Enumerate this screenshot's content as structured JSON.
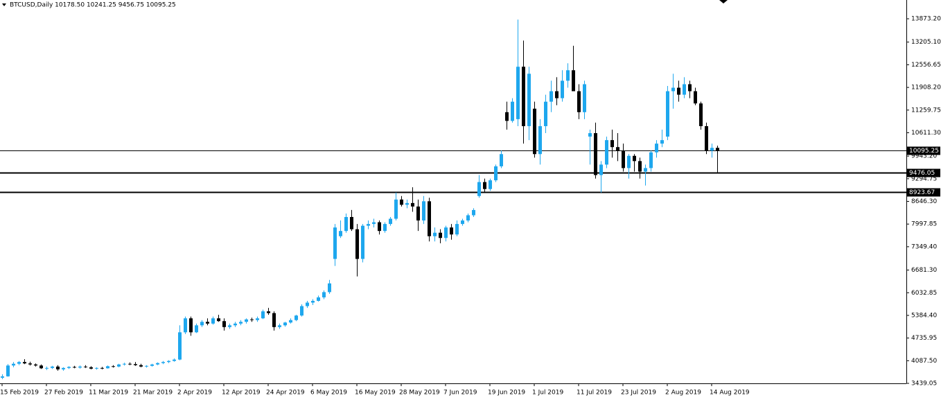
{
  "chart_data": {
    "type": "candlestick",
    "title": "BTCUSD,Daily  10178.50 10241.25 9456.75 10095.25",
    "bull_color": "#1ea7ee",
    "bear_color": "#000000",
    "ylim": [
      3439.05,
      14409.9
    ],
    "yticks": [
      {
        "value": 13873.2,
        "label": "13873.20"
      },
      {
        "value": 13205.1,
        "label": "13205.10"
      },
      12556.65,
      {
        "value": 11908.2,
        "label": "11908.20"
      },
      11259.75,
      {
        "value": 10611.3,
        "label": "10611.30"
      },
      {
        "value": 9943.2,
        "label": "9943.20"
      },
      9294.75,
      {
        "value": 8646.3,
        "label": "8646.30"
      },
      7997.85,
      {
        "value": 7349.4,
        "label": "7349.40"
      },
      {
        "value": 6681.3,
        "label": "6681.30"
      },
      6032.85,
      {
        "value": 5384.4,
        "label": "5384.40"
      },
      4735.95,
      {
        "value": 4087.5,
        "label": "4087.50"
      },
      3439.05
    ],
    "bid": 10095.25,
    "levels": [
      9476.05,
      8923.67
    ],
    "categories": [
      "15 Feb 2019",
      null,
      null,
      null,
      null,
      null,
      null,
      null,
      "27 Feb 2019",
      null,
      null,
      null,
      null,
      null,
      null,
      null,
      "11 Mar 2019",
      null,
      null,
      null,
      null,
      null,
      null,
      null,
      "21 Mar 2019",
      null,
      null,
      null,
      null,
      null,
      null,
      null,
      "2 Apr 2019",
      null,
      null,
      null,
      null,
      null,
      null,
      null,
      "12 Apr 2019",
      null,
      null,
      null,
      null,
      null,
      null,
      null,
      "24 Apr 2019",
      null,
      null,
      null,
      null,
      null,
      null,
      null,
      "6 May 2019",
      null,
      null,
      null,
      null,
      null,
      null,
      null,
      "16 May 2019",
      null,
      null,
      null,
      null,
      null,
      null,
      null,
      "28 May 2019",
      null,
      null,
      null,
      null,
      null,
      null,
      null,
      "7 Jun 2019",
      null,
      null,
      null,
      null,
      null,
      null,
      null,
      "19 Jun 2019",
      null,
      null,
      null,
      null,
      null,
      null,
      null,
      "1 Jul 2019",
      null,
      null,
      null,
      null,
      null,
      null,
      null,
      "11 Jul 2019",
      null,
      null,
      null,
      null,
      null,
      null,
      null,
      "23 Jul 2019",
      null,
      null,
      null,
      null,
      null,
      null,
      null,
      "2 Aug 2019",
      null,
      null,
      null,
      null,
      null,
      null,
      null,
      "14 Aug 2019",
      null
    ],
    "ohlc": [
      [
        3600,
        3700,
        3560,
        3640
      ],
      [
        3640,
        3990,
        3630,
        3950
      ],
      [
        3950,
        4050,
        3900,
        4000
      ],
      [
        4000,
        4080,
        3960,
        4050
      ],
      [
        4050,
        4130,
        3990,
        4010
      ],
      [
        4010,
        4060,
        3950,
        3980
      ],
      [
        3980,
        4010,
        3920,
        3950
      ],
      [
        3950,
        3980,
        3850,
        3870
      ],
      [
        3870,
        3920,
        3820,
        3880
      ],
      [
        3880,
        3940,
        3850,
        3920
      ],
      [
        3920,
        3960,
        3800,
        3840
      ],
      [
        3840,
        3900,
        3800,
        3880
      ],
      [
        3880,
        3930,
        3850,
        3910
      ],
      [
        3910,
        3940,
        3870,
        3890
      ],
      [
        3890,
        3950,
        3860,
        3920
      ],
      [
        3920,
        3960,
        3880,
        3900
      ],
      [
        3900,
        3930,
        3840,
        3860
      ],
      [
        3860,
        3900,
        3830,
        3880
      ],
      [
        3880,
        3910,
        3840,
        3870
      ],
      [
        3870,
        3950,
        3860,
        3930
      ],
      [
        3930,
        3960,
        3890,
        3920
      ],
      [
        3920,
        4000,
        3900,
        3980
      ],
      [
        3980,
        4030,
        3950,
        4000
      ],
      [
        4000,
        4040,
        3960,
        3990
      ],
      [
        3990,
        4050,
        3940,
        3960
      ],
      [
        3960,
        4000,
        3900,
        3920
      ],
      [
        3920,
        3960,
        3890,
        3940
      ],
      [
        3940,
        4000,
        3920,
        3980
      ],
      [
        3980,
        4040,
        3960,
        4020
      ],
      [
        4020,
        4080,
        3990,
        4050
      ],
      [
        4050,
        4100,
        4020,
        4080
      ],
      [
        4080,
        4150,
        4060,
        4120
      ],
      [
        4120,
        5100,
        4100,
        4900
      ],
      [
        4900,
        5350,
        4850,
        5300
      ],
      [
        5300,
        5350,
        4800,
        4900
      ],
      [
        4900,
        5150,
        4880,
        5100
      ],
      [
        5100,
        5250,
        5050,
        5200
      ],
      [
        5200,
        5300,
        5100,
        5150
      ],
      [
        5150,
        5350,
        5120,
        5300
      ],
      [
        5300,
        5400,
        5200,
        5220
      ],
      [
        5220,
        5300,
        4950,
        5050
      ],
      [
        5050,
        5150,
        5000,
        5100
      ],
      [
        5100,
        5200,
        5050,
        5150
      ],
      [
        5150,
        5250,
        5100,
        5200
      ],
      [
        5200,
        5300,
        5150,
        5270
      ],
      [
        5270,
        5320,
        5200,
        5250
      ],
      [
        5250,
        5350,
        5200,
        5300
      ],
      [
        5300,
        5550,
        5280,
        5500
      ],
      [
        5500,
        5600,
        5400,
        5450
      ],
      [
        5450,
        5500,
        4950,
        5050
      ],
      [
        5050,
        5150,
        5000,
        5100
      ],
      [
        5100,
        5200,
        5060,
        5180
      ],
      [
        5180,
        5300,
        5150,
        5250
      ],
      [
        5250,
        5400,
        5220,
        5380
      ],
      [
        5380,
        5700,
        5350,
        5650
      ],
      [
        5650,
        5800,
        5600,
        5750
      ],
      [
        5750,
        5850,
        5680,
        5800
      ],
      [
        5800,
        5950,
        5780,
        5900
      ],
      [
        5900,
        6100,
        5850,
        6050
      ],
      [
        6050,
        6400,
        6000,
        6300
      ],
      [
        7000,
        8000,
        6800,
        7900
      ],
      [
        7650,
        8100,
        7600,
        7800
      ],
      [
        7800,
        8300,
        7750,
        8200
      ],
      [
        8200,
        8400,
        7800,
        7850
      ],
      [
        7850,
        8000,
        6500,
        7000
      ],
      [
        7000,
        8000,
        6900,
        7950
      ],
      [
        7950,
        8100,
        7850,
        8000
      ],
      [
        8000,
        8150,
        7900,
        8050
      ],
      [
        8050,
        8100,
        7700,
        7800
      ],
      [
        7800,
        8050,
        7750,
        8000
      ],
      [
        8000,
        8200,
        7950,
        8150
      ],
      [
        8150,
        8900,
        8100,
        8700
      ],
      [
        8700,
        8800,
        8500,
        8550
      ],
      [
        8550,
        8700,
        8450,
        8600
      ],
      [
        8600,
        9050,
        8350,
        8500
      ],
      [
        8500,
        8700,
        7800,
        8100
      ],
      [
        8100,
        8800,
        8000,
        8650
      ],
      [
        8650,
        8750,
        7500,
        7650
      ],
      [
        7650,
        7900,
        7500,
        7750
      ],
      [
        7750,
        7850,
        7450,
        7600
      ],
      [
        7600,
        7950,
        7500,
        7900
      ],
      [
        7900,
        8000,
        7550,
        7700
      ],
      [
        7700,
        8100,
        7650,
        8000
      ],
      [
        8000,
        8150,
        7950,
        8100
      ],
      [
        8100,
        8300,
        8050,
        8250
      ],
      [
        8250,
        8450,
        8200,
        8400
      ],
      [
        8800,
        9400,
        8750,
        9200
      ],
      [
        9200,
        9300,
        8900,
        9000
      ],
      [
        9000,
        9300,
        8950,
        9250
      ],
      [
        9250,
        9700,
        9200,
        9650
      ],
      [
        9650,
        10100,
        9600,
        10000
      ],
      [
        11200,
        11500,
        10700,
        10950
      ],
      [
        10950,
        11600,
        10900,
        11500
      ],
      [
        11000,
        13850,
        10800,
        12500
      ],
      [
        12500,
        13250,
        10300,
        10800
      ],
      [
        10800,
        12500,
        10400,
        12300
      ],
      [
        11300,
        11500,
        9900,
        10000
      ],
      [
        10000,
        11000,
        9700,
        10800
      ],
      [
        10800,
        11700,
        10600,
        11500
      ],
      [
        11500,
        12100,
        11200,
        11800
      ],
      [
        11800,
        12200,
        11400,
        11600
      ],
      [
        11600,
        12400,
        11500,
        12100
      ],
      [
        12100,
        12600,
        11900,
        12400
      ],
      [
        12400,
        13100,
        11900,
        11800
      ],
      [
        11800,
        12000,
        11000,
        11200
      ],
      [
        11200,
        12100,
        11000,
        12000
      ],
      [
        10500,
        10700,
        9700,
        10600
      ],
      [
        10600,
        10900,
        9300,
        9400
      ],
      [
        9400,
        9800,
        8900,
        9700
      ],
      [
        9700,
        10500,
        9600,
        10400
      ],
      [
        10400,
        10700,
        9900,
        10200
      ],
      [
        10200,
        10600,
        9800,
        10100
      ],
      [
        10100,
        10300,
        9500,
        9600
      ],
      [
        9600,
        10000,
        9300,
        9950
      ],
      [
        9950,
        10000,
        9500,
        9800
      ],
      [
        9800,
        9900,
        9300,
        9500
      ],
      [
        9500,
        9700,
        9100,
        9600
      ],
      [
        9600,
        10100,
        9500,
        10050
      ],
      [
        10050,
        10400,
        9900,
        10300
      ],
      [
        10300,
        10700,
        10200,
        10400
      ],
      [
        10500,
        11950,
        10400,
        11800
      ],
      [
        11800,
        12300,
        11300,
        11900
      ],
      [
        11900,
        12100,
        11500,
        11700
      ],
      [
        11700,
        12200,
        11600,
        12000
      ],
      [
        12000,
        12100,
        11600,
        11800
      ],
      [
        11800,
        11900,
        11400,
        11450
      ],
      [
        11450,
        11500,
        10700,
        10800
      ],
      [
        10800,
        10900,
        10000,
        10100
      ],
      [
        10100,
        10300,
        9900,
        10178.5
      ],
      [
        10178.5,
        10241.25,
        9456.75,
        10095.25
      ]
    ]
  }
}
